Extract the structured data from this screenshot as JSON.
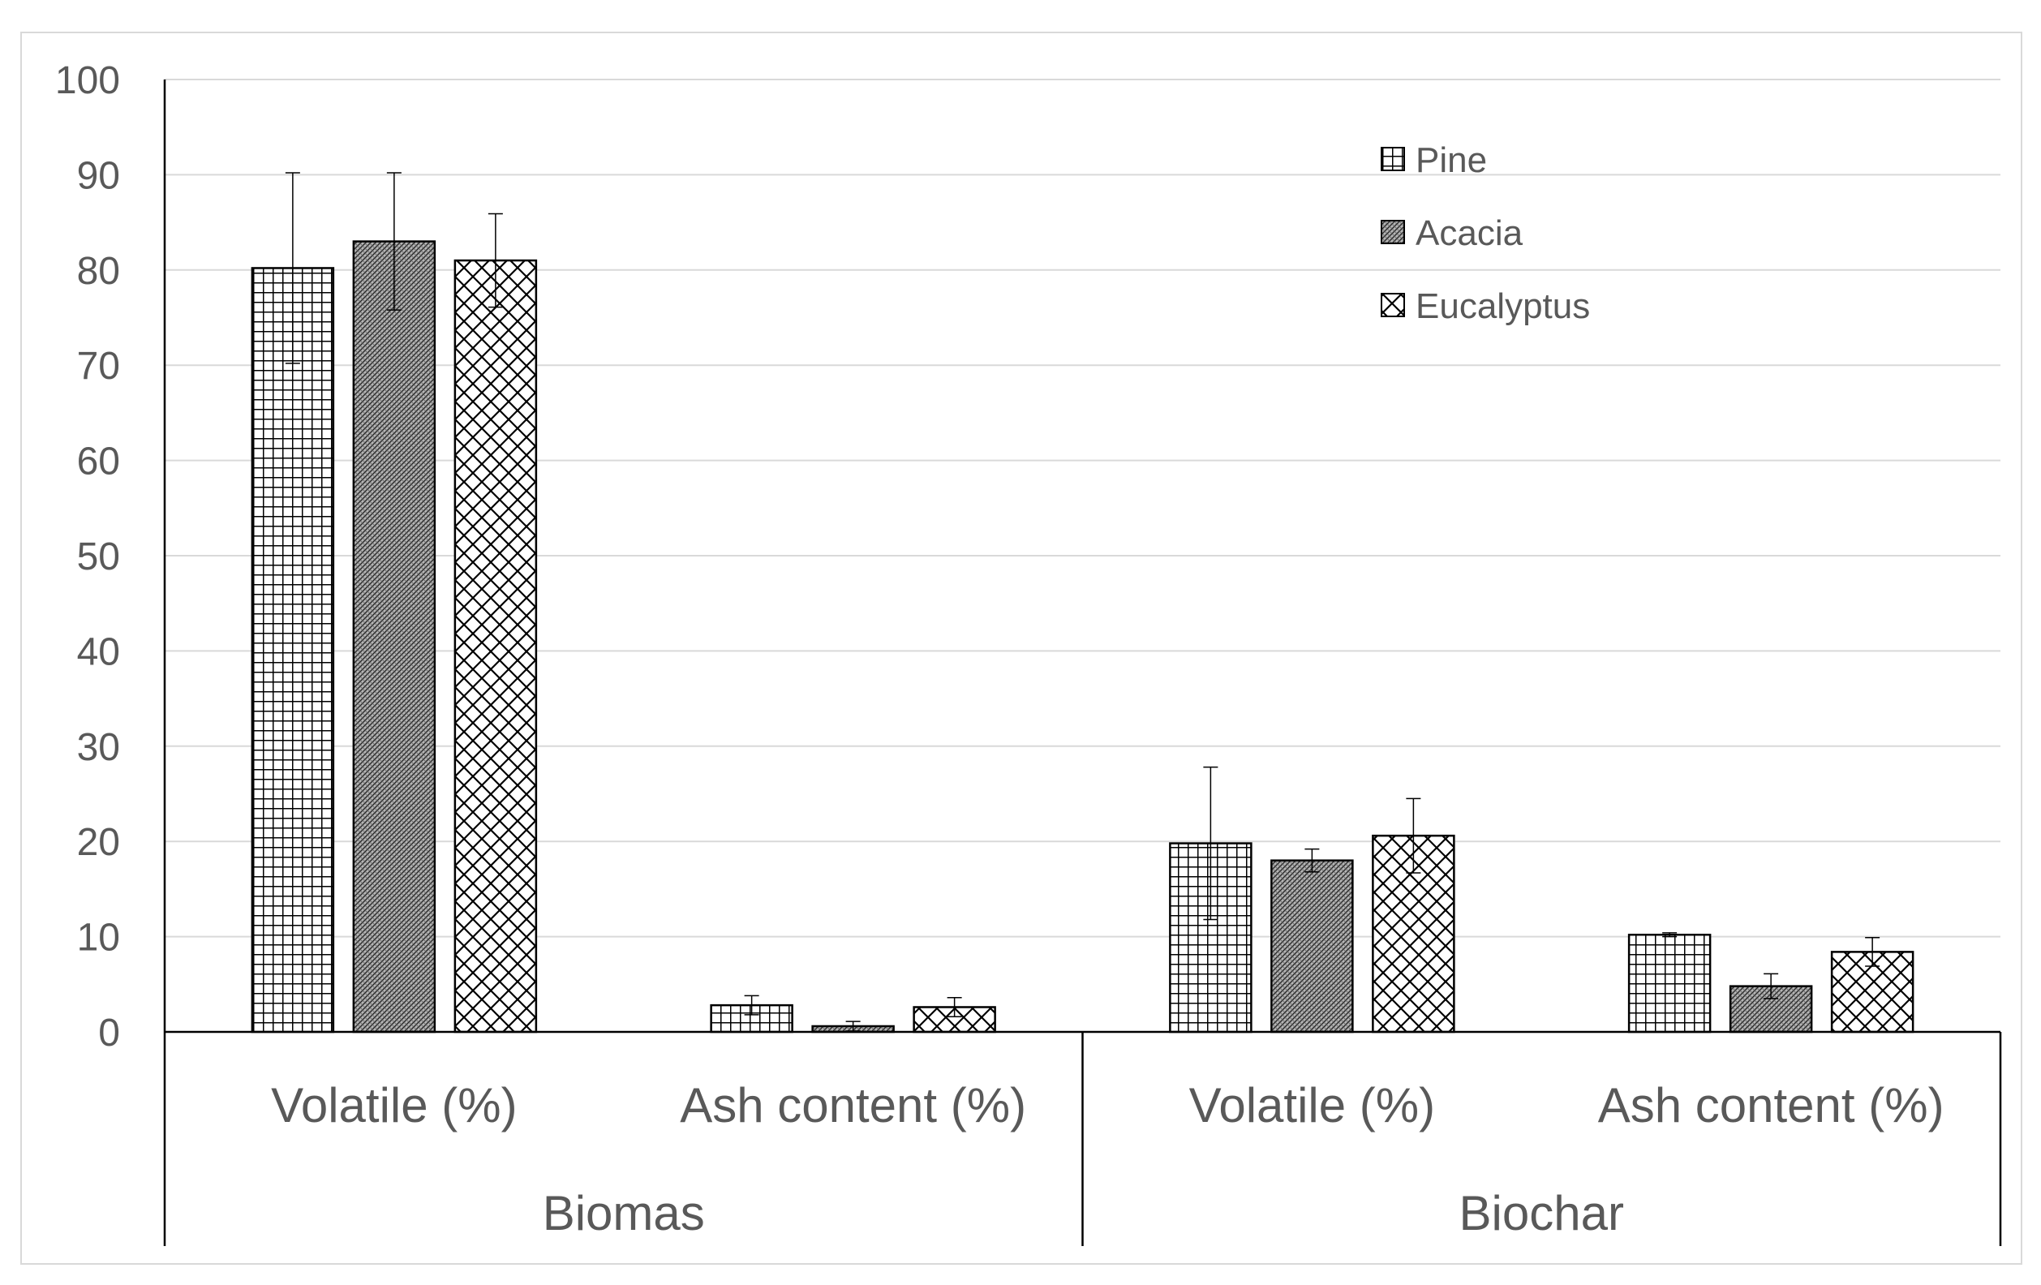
{
  "chart_data": {
    "type": "bar",
    "title": "",
    "xlabel": "",
    "ylabel": "",
    "ylim": [
      0,
      100
    ],
    "yticks": [
      0,
      10,
      20,
      30,
      40,
      50,
      60,
      70,
      80,
      90,
      100
    ],
    "grid": true,
    "legend_position": "top-right",
    "groups": [
      {
        "label": "Biomas",
        "categories": [
          "Volatile (%)",
          "Ash content (%)"
        ]
      },
      {
        "label": "Biochar",
        "categories": [
          "Volatile (%)",
          "Ash content (%)"
        ]
      }
    ],
    "series": [
      {
        "name": "Pine",
        "pattern": "grid",
        "values": [
          80.2,
          2.8,
          19.8,
          10.2
        ],
        "errors": [
          10.0,
          1.0,
          8.0,
          0.2
        ]
      },
      {
        "name": "Acacia",
        "pattern": "dense",
        "values": [
          83.0,
          0.6,
          18.0,
          4.8
        ],
        "errors": [
          7.2,
          0.5,
          1.2,
          1.3
        ]
      },
      {
        "name": "Eucalyptus",
        "pattern": "diamond",
        "values": [
          81.0,
          2.6,
          20.6,
          8.4
        ],
        "errors": [
          4.9,
          1.0,
          3.9,
          1.5
        ]
      }
    ],
    "colors": {
      "axis": "#000000",
      "grid": "#d9d9d9",
      "text": "#595959",
      "bar_edge": "#000000"
    }
  }
}
